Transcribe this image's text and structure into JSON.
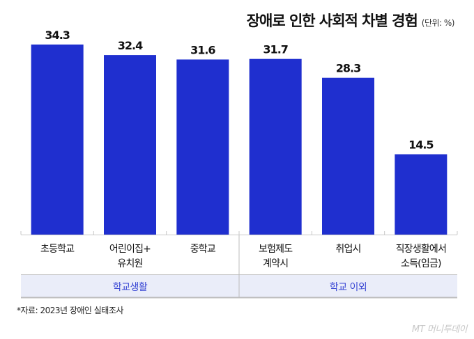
{
  "chart_data": {
    "type": "bar",
    "title": "장애로 인한 사회적 차별 경험",
    "unit": "(단위: %)",
    "categories": [
      "초등학교",
      "어린이집+\n유치원",
      "중학교",
      "보험제도\n계약시",
      "취업시",
      "직장생활에서\n소득(임금)"
    ],
    "values": [
      34.3,
      32.4,
      31.6,
      31.7,
      28.3,
      14.5
    ],
    "value_labels": [
      "34.3",
      "32.4",
      "31.6",
      "31.7",
      "28.3",
      "14.5"
    ],
    "groups": [
      {
        "label": "학교생활",
        "span": 3
      },
      {
        "label": "학교 이외",
        "span": 3
      }
    ],
    "ylim": [
      0,
      35
    ],
    "grid": false,
    "colors": {
      "bar": "#1f2fcf",
      "group_band": "#eaedf9",
      "group_text": "#3a48d4"
    }
  },
  "source": "*자료: 2023년 장애인 실태조사",
  "logo": "MT 머니투데이"
}
